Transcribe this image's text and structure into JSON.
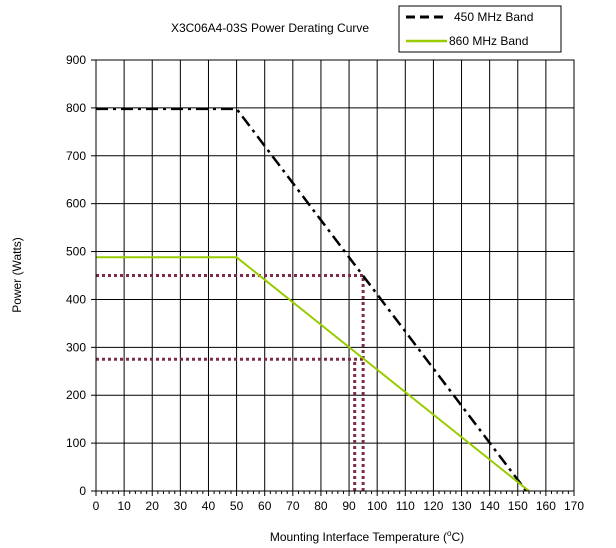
{
  "chart_data": {
    "type": "line",
    "title": "X3C06A4-03S Power Derating Curve",
    "xlabel": "Mounting Interface Temperature (",
    "xlabel_sup": "o",
    "xlabel_unit": "C)",
    "ylabel": "Power (Watts)",
    "xlim": [
      0,
      170
    ],
    "ylim": [
      0,
      900
    ],
    "xticks": [
      0,
      10,
      20,
      30,
      40,
      50,
      60,
      70,
      80,
      90,
      100,
      110,
      120,
      130,
      140,
      150,
      160,
      170
    ],
    "yticks": [
      0,
      100,
      200,
      300,
      400,
      500,
      600,
      700,
      800,
      900
    ],
    "grid": true,
    "legend_position": "top-right",
    "series": [
      {
        "name": "450 MHz Band",
        "color": "#000000",
        "style": "dash-dot",
        "points": [
          [
            0,
            798
          ],
          [
            50,
            798
          ],
          [
            153,
            0
          ]
        ]
      },
      {
        "name": "860 MHz Band",
        "color": "#99cc00",
        "style": "solid",
        "points": [
          [
            0,
            488
          ],
          [
            50,
            488
          ],
          [
            154,
            0
          ]
        ]
      }
    ],
    "reference_lines": {
      "color": "#7f2a4a",
      "style": "dotted",
      "segments": [
        [
          [
            0,
            450
          ],
          [
            95,
            450
          ]
        ],
        [
          [
            0,
            275
          ],
          [
            95,
            275
          ]
        ],
        [
          [
            95,
            0
          ],
          [
            95,
            450
          ]
        ],
        [
          [
            92,
            0
          ],
          [
            92,
            275
          ]
        ]
      ]
    }
  }
}
